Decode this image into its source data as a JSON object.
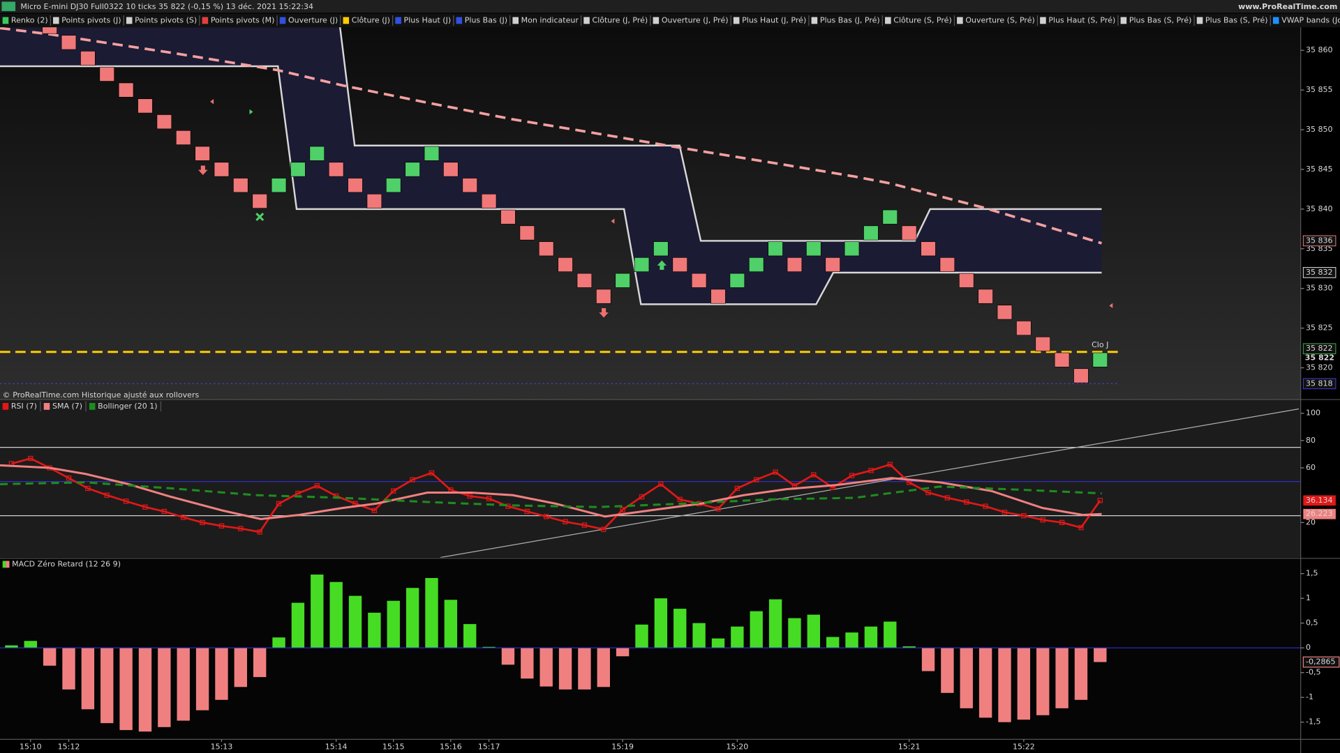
{
  "header": {
    "title": "Micro E-mini DJ30 Full0322 10 ticks 35 822 (-0,15 %) 13 déc. 2021 15:22:34",
    "site": "www.ProRealTime.com"
  },
  "indicators": [
    {
      "name": "Renko (2)",
      "color": "#3cc85a"
    },
    {
      "name": "Points pivots (J)",
      "color": "#d0d0d0"
    },
    {
      "name": "Points pivots (S)",
      "color": "#d0d0d0"
    },
    {
      "name": "Points pivots (M)",
      "color": "#e04040"
    },
    {
      "name": "Ouverture (J)",
      "color": "#3050e0"
    },
    {
      "name": "Clôture (J)",
      "color": "#ffcc00"
    },
    {
      "name": "Plus Haut (J)",
      "color": "#3050e0"
    },
    {
      "name": "Plus Bas (J)",
      "color": "#3050e0"
    },
    {
      "name": "Mon indicateur",
      "color": "#d0d0d0"
    },
    {
      "name": "Clôture (J, Pré)",
      "color": "#d0d0d0"
    },
    {
      "name": "Ouverture (J, Pré)",
      "color": "#d0d0d0"
    },
    {
      "name": "Plus Haut (J, Pré)",
      "color": "#d0d0d0"
    },
    {
      "name": "Plus Bas (J, Pré)",
      "color": "#d0d0d0"
    },
    {
      "name": "Clôture (S, Pré)",
      "color": "#d0d0d0"
    },
    {
      "name": "Ouverture (S, Pré)",
      "color": "#d0d0d0"
    },
    {
      "name": "Plus Haut (S, Pré)",
      "color": "#d0d0d0"
    },
    {
      "name": "Plus Bas (S, Pré)",
      "color": "#d0d0d0"
    },
    {
      "name": "Plus Bas (S, Pré)",
      "color": "#d0d0d0"
    },
    {
      "name": "VWAP bands (Journalier)",
      "color": "#1e90ff"
    },
    {
      "name": "SMA",
      "color": "#f4a0a0"
    }
  ],
  "chart_data": [
    {
      "type": "renko",
      "note": "© ProRealTime.com  Historique ajusté aux rollovers",
      "x": [
        0,
        1,
        2,
        3,
        4,
        5,
        6,
        7,
        8,
        9,
        10,
        11,
        12,
        13,
        14,
        15,
        16,
        17,
        18,
        19,
        20,
        21,
        22,
        23,
        24,
        25,
        26,
        27,
        28,
        29,
        30,
        31,
        32,
        33,
        34,
        35,
        36,
        37,
        38,
        39,
        40,
        41,
        42,
        43,
        44,
        45,
        46,
        47,
        48,
        49,
        50,
        51,
        52,
        53,
        54,
        55
      ],
      "open": [
        35864,
        35862,
        35860,
        35858,
        35856,
        35854,
        35852,
        35850,
        35848,
        35846,
        35844,
        35842,
        35842,
        35844,
        35846,
        35846,
        35844,
        35842,
        35842,
        35844,
        35846,
        35846,
        35844,
        35842,
        35840,
        35838,
        35836,
        35834,
        35832,
        35830,
        35830,
        35832,
        35834,
        35834,
        35832,
        35830,
        35830,
        35832,
        35834,
        35834,
        35834,
        35834,
        35834,
        35836,
        35838,
        35838,
        35836,
        35834,
        35832,
        35830,
        35828,
        35826,
        35824,
        35822,
        35820,
        35820
      ],
      "close": [
        35862,
        35860,
        35858,
        35856,
        35854,
        35852,
        35850,
        35848,
        35846,
        35844,
        35842,
        35840,
        35844,
        35846,
        35848,
        35844,
        35842,
        35840,
        35844,
        35846,
        35848,
        35844,
        35842,
        35840,
        35838,
        35836,
        35834,
        35832,
        35830,
        35828,
        35832,
        35834,
        35836,
        35832,
        35830,
        35828,
        35832,
        35834,
        35836,
        35832,
        35836,
        35832,
        35836,
        35838,
        35840,
        35836,
        35834,
        35832,
        35830,
        35828,
        35826,
        35824,
        35822,
        35820,
        35818,
        35822
      ],
      "up_color": "#4fd068",
      "down_color": "#f07878",
      "xlim": [
        -2.6,
        65.5
      ],
      "ylim": [
        35816.0,
        35862.9
      ],
      "yticks": [
        {
          "value": 35860,
          "label": "35 860"
        },
        {
          "value": 35855,
          "label": "35 855"
        },
        {
          "value": 35850,
          "label": "35 850"
        },
        {
          "value": 35845,
          "label": "35 845"
        },
        {
          "value": 35840,
          "label": "35 840"
        },
        {
          "value": 35835,
          "label": "35 835"
        },
        {
          "value": 35830,
          "label": "35 830"
        },
        {
          "value": 35825,
          "label": "35 825"
        },
        {
          "value": 35820,
          "label": "35 820"
        }
      ],
      "channel": {
        "color": "#d8d8d8",
        "fill": "#1b1b34",
        "upper": {
          "x": [
            15.2,
            15.97,
            32.98,
            34.09,
            45.3,
            46.1,
            55.08
          ],
          "values": [
            35863,
            35848,
            35848,
            35836,
            35836,
            35840,
            35840
          ]
        },
        "lower": {
          "x": [
            -2.6,
            11.95,
            12.93,
            30.07,
            30.96,
            40.13,
            41.03,
            55.08
          ],
          "values": [
            35858,
            35858,
            35840,
            35840,
            35828,
            35828,
            35832,
            35832
          ]
        }
      },
      "sma": {
        "color": "#f4a0a0",
        "x": [
          -2.6,
          0.09,
          6.35,
          11.95,
          15.3,
          19.78,
          24.25,
          28.72,
          33.07,
          37.67,
          42.15,
          44.07,
          46.62,
          48.86,
          51.1,
          55.08
        ],
        "values": [
          35862.8,
          35862.0,
          35859.7,
          35857.5,
          35855.6,
          35853.4,
          35851.3,
          35849.5,
          35847.7,
          35845.9,
          35844.1,
          35843.2,
          35841.6,
          35840.2,
          35838.6,
          35835.7
        ]
      },
      "levels": [
        {
          "value": 35836,
          "label": "35 836",
          "color": "#f08080"
        },
        {
          "value": 35832,
          "label": "35 832",
          "color": "#e0e0e0"
        },
        {
          "value": 35822.4,
          "label": "35 822",
          "color": "#3cb043"
        },
        {
          "value": 35822,
          "label": "35 822",
          "color": "#ffcc00",
          "line": "dashed",
          "name": "Clo J"
        },
        {
          "value": 35818,
          "label": "35 818",
          "color": "#4040e0",
          "line": "dotted"
        }
      ]
    },
    {
      "type": "line",
      "xlim": [
        -2.6,
        65.5
      ],
      "ylim": [
        -5.6,
        110
      ],
      "yticks": [
        20,
        60,
        80,
        100
      ],
      "levels": [
        {
          "value": 75,
          "color": "#d0d0d0"
        },
        {
          "value": 50,
          "color": "#3030c8"
        },
        {
          "value": 25,
          "color": "#d0d0d0"
        }
      ],
      "trendline": {
        "color": "#b0b0b0",
        "x": [
          20.45,
          65.4
        ],
        "values": [
          -5.6,
          103.1
        ]
      },
      "series": [
        {
          "name": "RSI (7)",
          "color": "#e01818",
          "markers": true,
          "x": [
            -2,
            -1,
            0,
            1,
            2,
            3,
            4,
            5,
            6,
            7,
            8,
            9,
            10,
            11,
            12,
            13,
            14,
            15,
            16,
            17,
            18,
            19,
            20,
            21,
            22,
            23,
            24,
            25,
            26,
            27,
            28,
            29,
            30,
            31,
            32,
            33,
            34,
            35,
            36,
            37,
            38,
            39,
            40,
            41,
            42,
            43,
            44,
            45,
            46,
            47,
            48,
            49,
            50,
            51,
            52,
            53,
            54,
            55
          ],
          "values": [
            63.1,
            66.9,
            60.0,
            52.5,
            45.0,
            40.0,
            35.6,
            31.3,
            28.1,
            23.8,
            20.0,
            17.5,
            15.6,
            13.1,
            33.8,
            41.3,
            46.9,
            39.4,
            33.8,
            28.8,
            43.1,
            51.3,
            56.3,
            43.8,
            39.4,
            37.5,
            31.9,
            28.1,
            24.4,
            20.6,
            18.1,
            15.0,
            29.4,
            38.8,
            48.1,
            36.9,
            33.8,
            30.0,
            45.0,
            51.3,
            56.9,
            46.9,
            55.0,
            45.6,
            54.4,
            58.1,
            62.5,
            49.4,
            41.9,
            38.1,
            35.0,
            31.9,
            27.5,
            25.0,
            21.9,
            20.0,
            16.3,
            36.134
          ]
        },
        {
          "name": "SMA (7)",
          "color": "#f08080",
          "x": [
            -2.6,
            0,
            1.88,
            4.12,
            6.35,
            9.04,
            11.05,
            13.06,
            15.3,
            17.09,
            19.78,
            22.06,
            24.25,
            26.49,
            29.08,
            31.41,
            34.09,
            36.33,
            38.57,
            41.25,
            44.07,
            46.62,
            49.31,
            51.99,
            54.09,
            55.08
          ],
          "values": [
            61.9,
            60.0,
            55.6,
            48.1,
            38.8,
            28.8,
            22.5,
            25.6,
            30.6,
            33.8,
            41.9,
            41.9,
            40.0,
            33.8,
            24.4,
            28.8,
            33.8,
            40.0,
            44.4,
            47.5,
            52.5,
            49.4,
            43.1,
            30.6,
            25.6,
            26.223
          ]
        },
        {
          "name": "Bollinger (20 1)",
          "color": "#1e8c1e",
          "dashed": true,
          "x": [
            -2.6,
            1.88,
            6.35,
            10.83,
            15.3,
            19.78,
            24.25,
            28.72,
            33.2,
            37.67,
            42.15,
            46.62,
            51.1,
            55.08
          ],
          "values": [
            48.1,
            49.4,
            45.0,
            40.0,
            38.1,
            35.0,
            32.5,
            31.3,
            33.8,
            36.9,
            38.1,
            46.3,
            43.8,
            41.3
          ]
        }
      ]
    },
    {
      "type": "bar",
      "name": "MACD Zéro Retard (12 26 9)",
      "positive_color": "#46dc24",
      "negative_color": "#f08080",
      "zero_color": "#3030d0",
      "xlim": [
        -2.6,
        65.5
      ],
      "ylim": [
        -1.83,
        1.79
      ],
      "yticks": [
        {
          "value": 1.5,
          "label": "1,5"
        },
        1,
        {
          "value": 0.5,
          "label": "0,5"
        },
        0,
        {
          "value": -0.5,
          "label": "-0,5"
        },
        -1,
        {
          "value": -1.5,
          "label": "-1,5"
        }
      ],
      "xticks": [
        {
          "value": -1,
          "label": "15:10"
        },
        {
          "value": 1,
          "label": "15:12"
        },
        {
          "value": 9,
          "label": "15:13"
        },
        {
          "value": 15,
          "label": "15:14"
        },
        {
          "value": 18,
          "label": "15:15"
        },
        {
          "value": 21,
          "label": "15:16"
        },
        {
          "value": 23,
          "label": "15:17"
        },
        {
          "value": 30,
          "label": "15:19"
        },
        {
          "value": 36,
          "label": "15:20"
        },
        {
          "value": 45,
          "label": "15:21"
        },
        {
          "value": 51,
          "label": "15:22"
        }
      ],
      "x": [
        -2,
        -1,
        0,
        1,
        2,
        3,
        4,
        5,
        6,
        7,
        8,
        9,
        10,
        11,
        12,
        13,
        14,
        15,
        16,
        17,
        18,
        19,
        20,
        21,
        22,
        23,
        24,
        25,
        26,
        27,
        28,
        29,
        30,
        31,
        32,
        33,
        34,
        35,
        36,
        37,
        38,
        39,
        40,
        41,
        42,
        43,
        44,
        45,
        46,
        47,
        48,
        49,
        50,
        51,
        52,
        53,
        54,
        55
      ],
      "values": [
        0.05,
        0.14,
        -0.36,
        -0.84,
        -1.24,
        -1.52,
        -1.66,
        -1.69,
        -1.6,
        -1.47,
        -1.26,
        -1.05,
        -0.79,
        -0.59,
        0.21,
        0.91,
        1.48,
        1.33,
        1.05,
        0.71,
        0.95,
        1.21,
        1.41,
        0.97,
        0.48,
        0.02,
        -0.34,
        -0.62,
        -0.78,
        -0.84,
        -0.84,
        -0.79,
        -0.17,
        0.47,
        1,
        0.79,
        0.5,
        0.19,
        0.43,
        0.74,
        0.98,
        0.6,
        0.67,
        0.22,
        0.31,
        0.43,
        0.53,
        0.03,
        -0.47,
        -0.91,
        -1.22,
        -1.41,
        -1.5,
        -1.45,
        -1.36,
        -1.22,
        -1.05,
        -0.2865
      ],
      "value_labels": [
        null,
        null,
        null,
        null,
        null,
        null,
        null,
        null,
        null,
        null,
        null,
        null,
        null,
        null,
        null,
        null,
        null,
        null,
        null,
        null,
        null,
        null,
        null,
        null,
        null,
        null,
        null,
        null,
        null,
        null,
        null,
        null,
        null,
        null,
        null,
        null,
        null,
        null,
        null,
        null,
        null,
        null,
        null,
        null,
        null,
        null,
        null,
        null,
        null,
        null,
        null,
        null,
        null,
        null,
        null,
        null,
        null,
        "-0,2865"
      ]
    }
  ]
}
